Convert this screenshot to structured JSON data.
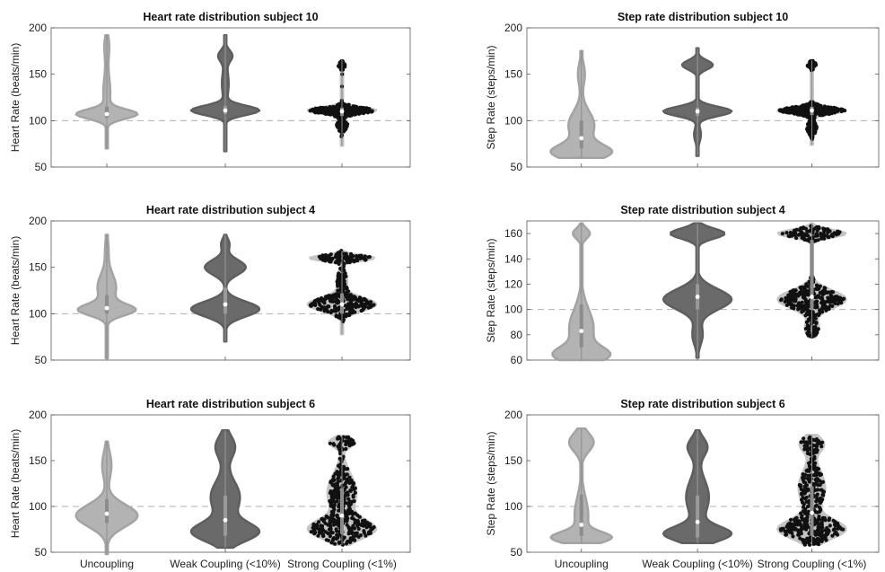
{
  "colors": {
    "uncoupling": "#b3b3b3",
    "uncoupling_edge": "#a3a3a3",
    "weak": "#6a6a6a",
    "weak_edge": "#5e5e5e",
    "strong_violin": "#c4c4c4",
    "strong_points": "#111111",
    "baseline": "#b0b0b0",
    "axes": "#555555"
  },
  "chart_data": [
    {
      "type": "violin",
      "title": "Heart rate distribution subject 10",
      "ylabel": "Heart Rate (beats/min)",
      "ylim": [
        50,
        200
      ],
      "yticks": [
        50,
        100,
        150,
        200
      ],
      "baseline": 100,
      "categories": [
        "Uncoupling",
        "Weak Coupling (<10%)",
        "Strong Coupling (<1%)"
      ],
      "show_categories": false,
      "series": [
        {
          "min": 70,
          "max": 192,
          "q1": 103,
          "median": 107,
          "q3": 115,
          "modes": [
            [
              107,
              5,
              1.0
            ],
            [
              130,
              20,
              0.12
            ],
            [
              180,
              12,
              0.08
            ]
          ],
          "width": 0.9
        },
        {
          "min": 67,
          "max": 192,
          "q1": 107,
          "median": 111,
          "q3": 116,
          "modes": [
            [
              111,
              5,
              1.0
            ],
            [
              170,
              6,
              0.2
            ],
            [
              140,
              15,
              0.1
            ]
          ],
          "width": 1.0
        },
        {
          "min": 73,
          "max": 165,
          "q1": 105,
          "median": 110,
          "q3": 114,
          "modes": [
            [
              111,
              3.5,
              1.0
            ],
            [
              160,
              3,
              0.12
            ],
            [
              95,
              5,
              0.18
            ]
          ],
          "width": 1.0
        }
      ]
    },
    {
      "type": "violin",
      "title": "Step rate distribution subject 10",
      "ylabel": "Step Rate (steps/min)",
      "ylim": [
        50,
        200
      ],
      "yticks": [
        50,
        100,
        150,
        200
      ],
      "baseline": 100,
      "categories": [
        "Uncoupling",
        "Weak Coupling (<10%)",
        "Strong Coupling (<1%)"
      ],
      "show_categories": false,
      "series": [
        {
          "min": 60,
          "max": 175,
          "q1": 70,
          "median": 81,
          "q3": 100,
          "modes": [
            [
              66,
              8,
              1.0
            ],
            [
              95,
              15,
              0.45
            ],
            [
              150,
              12,
              0.12
            ]
          ],
          "width": 0.9
        },
        {
          "min": 62,
          "max": 178,
          "q1": 105,
          "median": 110,
          "q3": 114,
          "modes": [
            [
              110,
              5,
              1.0
            ],
            [
              160,
              5,
              0.45
            ],
            [
              85,
              8,
              0.1
            ]
          ],
          "width": 1.0
        },
        {
          "min": 74,
          "max": 165,
          "q1": 106,
          "median": 111,
          "q3": 115,
          "modes": [
            [
              111,
              3.5,
              1.0
            ],
            [
              160,
              3,
              0.14
            ],
            [
              92,
              6,
              0.16
            ]
          ],
          "width": 1.0
        }
      ]
    },
    {
      "type": "violin",
      "title": "Heart rate distribution subject 4",
      "ylabel": "Heart Rate (beats/min)",
      "ylim": [
        50,
        200
      ],
      "yticks": [
        50,
        100,
        150,
        200
      ],
      "baseline": 100,
      "categories": [
        "Uncoupling",
        "Weak Coupling (<10%)",
        "Strong Coupling (<1%)"
      ],
      "show_categories": false,
      "series": [
        {
          "min": 52,
          "max": 185,
          "q1": 100,
          "median": 106,
          "q3": 120,
          "modes": [
            [
              104,
              6,
              1.0
            ],
            [
              128,
              15,
              0.35
            ],
            [
              170,
              12,
              0.06
            ]
          ],
          "width": 0.85
        },
        {
          "min": 70,
          "max": 185,
          "q1": 100,
          "median": 110,
          "q3": 128,
          "modes": [
            [
              105,
              8,
              1.0
            ],
            [
              150,
              8,
              0.6
            ],
            [
              175,
              6,
              0.12
            ]
          ],
          "width": 1.0
        },
        {
          "min": 78,
          "max": 168,
          "q1": 100,
          "median": 110,
          "q3": 122,
          "modes": [
            [
              110,
              7,
              1.0
            ],
            [
              160,
              3,
              0.95
            ],
            [
              135,
              10,
              0.15
            ]
          ],
          "width": 1.0
        }
      ]
    },
    {
      "type": "violin",
      "title": "Step rate distribution subject 4",
      "ylabel": "Step Rate (steps/min)",
      "ylim": [
        60,
        170
      ],
      "yticks": [
        60,
        80,
        100,
        120,
        140,
        160
      ],
      "baseline": 100,
      "categories": [
        "Uncoupling",
        "Weak Coupling (<10%)",
        "Strong Coupling (<1%)"
      ],
      "show_categories": false,
      "series": [
        {
          "min": 60,
          "max": 168,
          "q1": 70,
          "median": 83,
          "q3": 104,
          "modes": [
            [
              64,
              6,
              1.0
            ],
            [
              85,
              15,
              0.5
            ],
            [
              160,
              4,
              0.35
            ]
          ],
          "width": 0.85
        },
        {
          "min": 62,
          "max": 168,
          "q1": 100,
          "median": 110,
          "q3": 120,
          "modes": [
            [
              108,
              8,
              1.0
            ],
            [
              160,
              4,
              0.8
            ],
            [
              80,
              8,
              0.15
            ]
          ],
          "width": 1.0
        },
        {
          "min": 78,
          "max": 168,
          "q1": 100,
          "median": 110,
          "q3": 155,
          "modes": [
            [
              108,
              7,
              1.0
            ],
            [
              160,
              3,
              1.0
            ],
            [
              85,
              6,
              0.2
            ]
          ],
          "width": 1.0
        }
      ]
    },
    {
      "type": "violin",
      "title": "Heart rate distribution subject 6",
      "ylabel": "Heart Rate (beats/min)",
      "ylim": [
        50,
        200
      ],
      "yticks": [
        50,
        100,
        150,
        200
      ],
      "baseline": 100,
      "categories": [
        "Uncoupling",
        "Weak Coupling (<10%)",
        "Strong Coupling (<1%)"
      ],
      "show_categories": true,
      "series": [
        {
          "min": 48,
          "max": 171,
          "q1": 82,
          "median": 92,
          "q3": 108,
          "modes": [
            [
              90,
              12,
              1.0
            ],
            [
              145,
              15,
              0.15
            ]
          ],
          "width": 0.9
        },
        {
          "min": 55,
          "max": 183,
          "q1": 68,
          "median": 85,
          "q3": 112,
          "modes": [
            [
              72,
              10,
              1.0
            ],
            [
              110,
              18,
              0.45
            ],
            [
              165,
              12,
              0.3
            ]
          ],
          "width": 1.0
        },
        {
          "min": 58,
          "max": 177,
          "q1": 70,
          "median": 90,
          "q3": 120,
          "modes": [
            [
              75,
              10,
              1.0
            ],
            [
              115,
              20,
              0.45
            ],
            [
              170,
              5,
              0.4
            ]
          ],
          "width": 1.0
        }
      ]
    },
    {
      "type": "violin",
      "title": "Step rate distribution subject 6",
      "ylabel": "Step Rate (steps/min)",
      "ylim": [
        50,
        200
      ],
      "yticks": [
        50,
        100,
        150,
        200
      ],
      "baseline": 100,
      "categories": [
        "Uncoupling",
        "Weak Coupling (<10%)",
        "Strong Coupling (<1%)"
      ],
      "show_categories": true,
      "series": [
        {
          "min": 60,
          "max": 185,
          "q1": 68,
          "median": 80,
          "q3": 113,
          "modes": [
            [
              66,
              6,
              1.0
            ],
            [
              90,
              20,
              0.25
            ],
            [
              170,
              10,
              0.45
            ]
          ],
          "width": 0.9
        },
        {
          "min": 60,
          "max": 183,
          "q1": 66,
          "median": 83,
          "q3": 112,
          "modes": [
            [
              70,
              8,
              1.0
            ],
            [
              110,
              20,
              0.35
            ],
            [
              165,
              10,
              0.3
            ]
          ],
          "width": 1.0
        },
        {
          "min": 58,
          "max": 178,
          "q1": 68,
          "median": 93,
          "q3": 122,
          "modes": [
            [
              75,
              10,
              1.0
            ],
            [
              120,
              20,
              0.4
            ],
            [
              168,
              8,
              0.35
            ]
          ],
          "width": 1.0
        }
      ]
    }
  ]
}
